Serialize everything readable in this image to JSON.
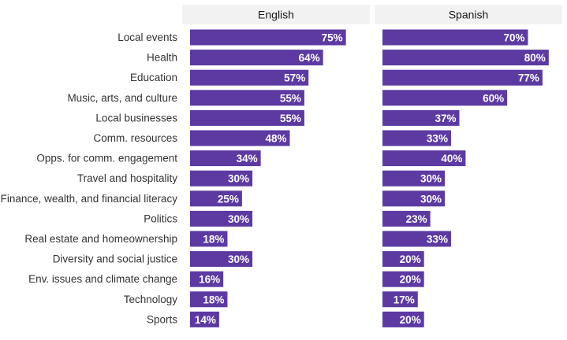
{
  "chart_data": {
    "type": "bar",
    "orientation": "horizontal",
    "facets": [
      "English",
      "Spanish"
    ],
    "categories": [
      "Local events",
      "Health",
      "Education",
      "Music, arts, and culture",
      "Local businesses",
      "Comm. resources",
      "Opps. for comm. engagement",
      "Travel and hospitality",
      "Finance, wealth, and financial literacy",
      "Politics",
      "Real estate and homeownership",
      "Diversity and social justice",
      "Env. issues and climate change",
      "Technology",
      "Sports"
    ],
    "series": [
      {
        "name": "English",
        "values": [
          75,
          64,
          57,
          55,
          55,
          48,
          34,
          30,
          25,
          30,
          18,
          30,
          16,
          18,
          14
        ]
      },
      {
        "name": "Spanish",
        "values": [
          70,
          80,
          77,
          60,
          37,
          33,
          40,
          30,
          30,
          23,
          33,
          20,
          20,
          17,
          20
        ]
      }
    ],
    "value_suffix": "%",
    "xlim": [
      0,
      85
    ],
    "bar_color": "#5c3aa2",
    "label_color": "#ffffff",
    "facet_header_color": "#f2f2f2",
    "grid": false,
    "legend": "none"
  }
}
